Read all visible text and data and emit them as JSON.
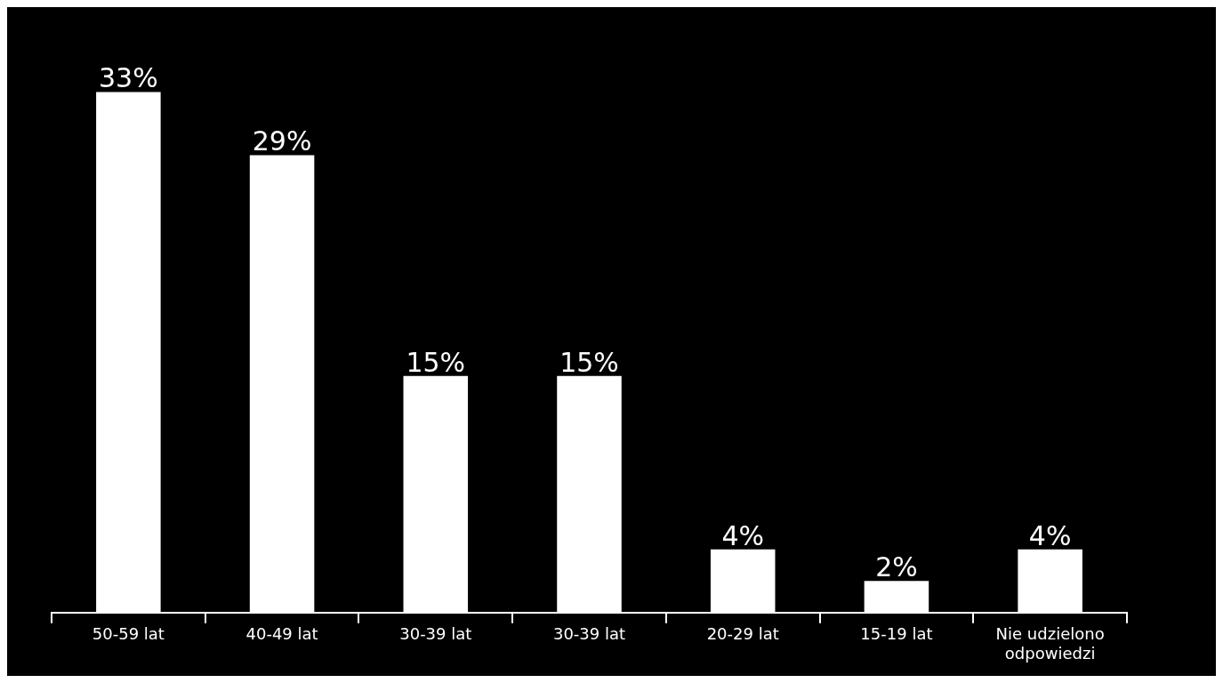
{
  "chart_data": {
    "type": "bar",
    "categories": [
      "50-59 lat",
      "40-49 lat",
      "30-39 lat",
      "30-39 lat",
      "20-29 lat",
      "15-19 lat",
      "Nie udzielono odpowiedzi"
    ],
    "values": [
      33,
      29,
      15,
      15,
      4,
      2,
      4
    ],
    "value_labels": [
      "33%",
      "29%",
      "15%",
      "15%",
      "4%",
      "2%",
      "4%"
    ],
    "color": "#ffffff",
    "grid": false,
    "legend": false
  }
}
